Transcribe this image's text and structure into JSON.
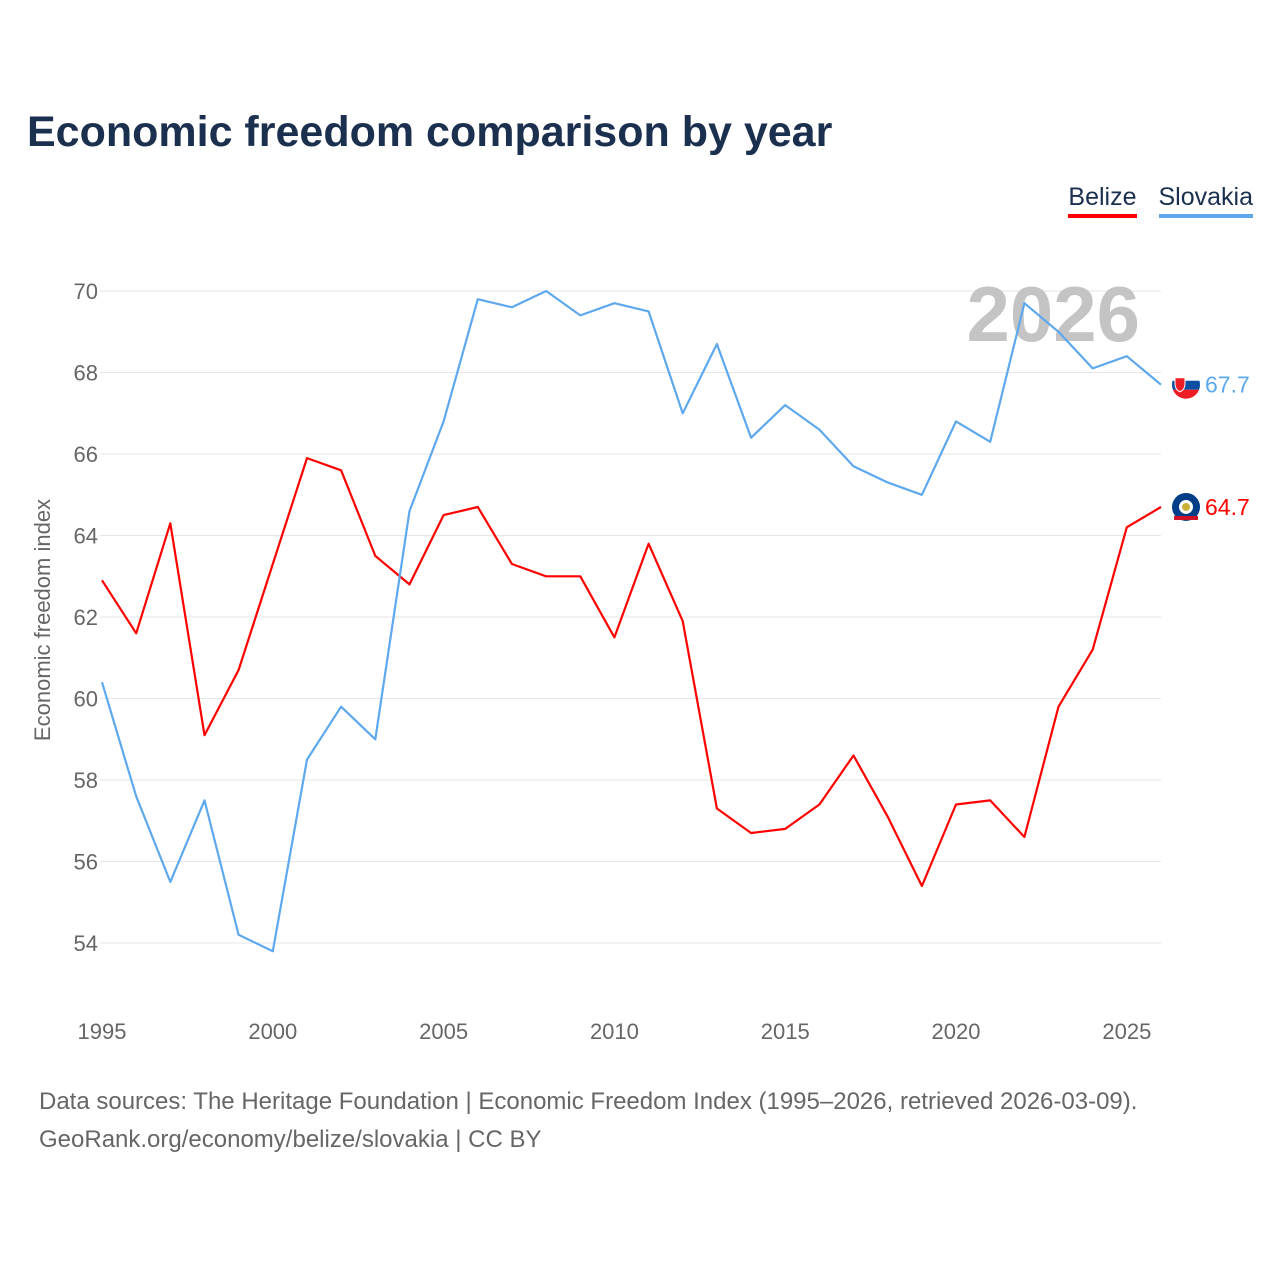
{
  "title": "Economic freedom comparison by year",
  "footer": {
    "line1": "Data sources: The Heritage Foundation | Economic Freedom Index (1995–2026, retrieved 2026-03-09).",
    "line2": "GeoRank.org/economy/belize/slovakia | CC BY"
  },
  "chart_data": {
    "type": "line",
    "title": "Economic freedom comparison by year",
    "ylabel": "Economic freedom index",
    "xlabel": "",
    "watermark_year": "2026",
    "xlim": [
      1995,
      2026
    ],
    "ylim": [
      54,
      70
    ],
    "xticks": [
      1995,
      2000,
      2005,
      2010,
      2015,
      2020,
      2025
    ],
    "yticks": [
      54,
      56,
      58,
      60,
      62,
      64,
      66,
      68,
      70
    ],
    "grid": true,
    "legend_position": "top-right",
    "x": [
      1995,
      1996,
      1997,
      1998,
      1999,
      2000,
      2001,
      2002,
      2003,
      2004,
      2005,
      2006,
      2007,
      2008,
      2009,
      2010,
      2011,
      2012,
      2013,
      2014,
      2015,
      2016,
      2017,
      2018,
      2019,
      2020,
      2021,
      2022,
      2023,
      2024,
      2025,
      2026
    ],
    "series": [
      {
        "name": "Belize",
        "color": "#ff0000",
        "end_label": "64.7",
        "flag": "belize-flag-icon",
        "values": [
          62.9,
          61.6,
          64.3,
          59.1,
          60.7,
          63.3,
          65.9,
          65.6,
          63.5,
          62.8,
          64.5,
          64.7,
          63.3,
          63.0,
          63.0,
          61.5,
          63.8,
          61.9,
          57.3,
          56.7,
          56.8,
          57.4,
          58.6,
          57.1,
          55.4,
          57.4,
          57.5,
          56.6,
          59.8,
          61.2,
          64.2,
          64.7
        ]
      },
      {
        "name": "Slovakia",
        "color": "#5ea8ee",
        "end_label": "67.7",
        "flag": "slovakia-flag-icon",
        "values": [
          60.4,
          57.6,
          55.5,
          57.5,
          54.2,
          53.8,
          58.5,
          59.8,
          59.0,
          64.6,
          66.8,
          69.8,
          69.6,
          70.0,
          69.4,
          69.7,
          69.5,
          67.0,
          68.7,
          66.4,
          67.2,
          66.6,
          65.7,
          65.3,
          65.0,
          66.8,
          66.3,
          69.7,
          69.0,
          68.1,
          68.4,
          67.7
        ]
      }
    ]
  }
}
